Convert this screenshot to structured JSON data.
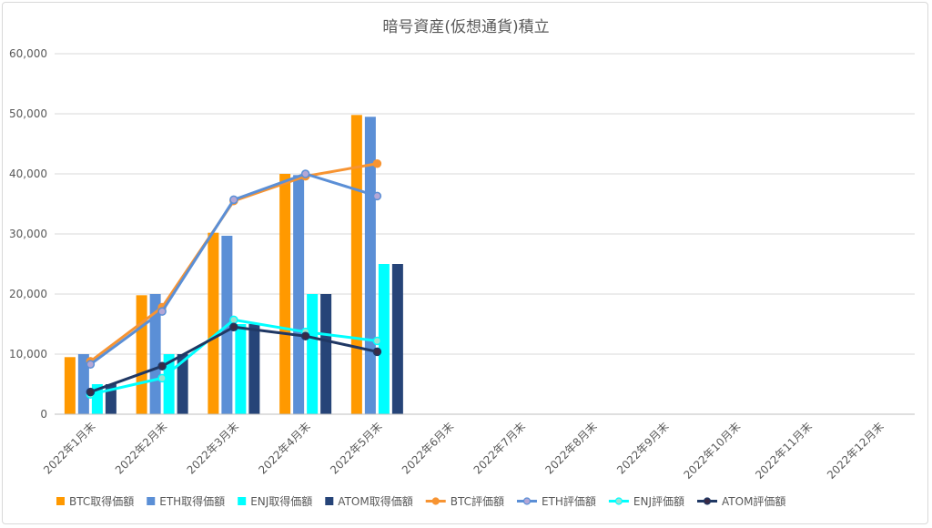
{
  "chart_data": {
    "type": "bar",
    "title": "暗号資産(仮想通貨)積立",
    "categories": [
      "2022年1月末",
      "2022年2月末",
      "2022年3月末",
      "2022年4月末",
      "2022年5月末",
      "2022年6月末",
      "2022年7月末",
      "2022年8月末",
      "2022年9月末",
      "2022年10月末",
      "2022年11月末",
      "2022年12月末"
    ],
    "ylim": [
      0,
      60000
    ],
    "yticks": [
      "0",
      "10,000",
      "20,000",
      "30,000",
      "40,000",
      "50,000",
      "60,000"
    ],
    "ytick_values": [
      0,
      10000,
      20000,
      30000,
      40000,
      50000,
      60000
    ],
    "grid": true,
    "legend_position": "bottom",
    "bar_series": [
      {
        "name": "BTC取得価額",
        "color": "#ff9900",
        "values": [
          9500,
          19800,
          30200,
          40000,
          49800
        ]
      },
      {
        "name": "ETH取得価額",
        "color": "#5b8fd6",
        "values": [
          10000,
          20000,
          29700,
          39800,
          49500
        ]
      },
      {
        "name": "ENJ取得価額",
        "color": "#00ffff",
        "values": [
          5000,
          10000,
          15000,
          20000,
          25000
        ]
      },
      {
        "name": "ATOM取得価額",
        "color": "#264478",
        "values": [
          5000,
          10000,
          15000,
          20000,
          25000
        ]
      }
    ],
    "line_series": [
      {
        "name": "BTC評価額",
        "color": "#f79432",
        "marker": "#f79432",
        "values": [
          8800,
          17800,
          35500,
          39600,
          41700
        ]
      },
      {
        "name": "ETH評価額",
        "color": "#5b8fd6",
        "marker": "#b4a7d6",
        "values": [
          8300,
          17100,
          35700,
          40000,
          36300
        ]
      },
      {
        "name": "ENJ評価額",
        "color": "#00ffff",
        "marker": "#9fe0d0",
        "values": [
          3300,
          6000,
          15700,
          13700,
          12200
        ]
      },
      {
        "name": "ATOM評価額",
        "color": "#203864",
        "marker": "#3a2a45",
        "values": [
          3700,
          8000,
          14500,
          13000,
          10400
        ]
      }
    ]
  }
}
